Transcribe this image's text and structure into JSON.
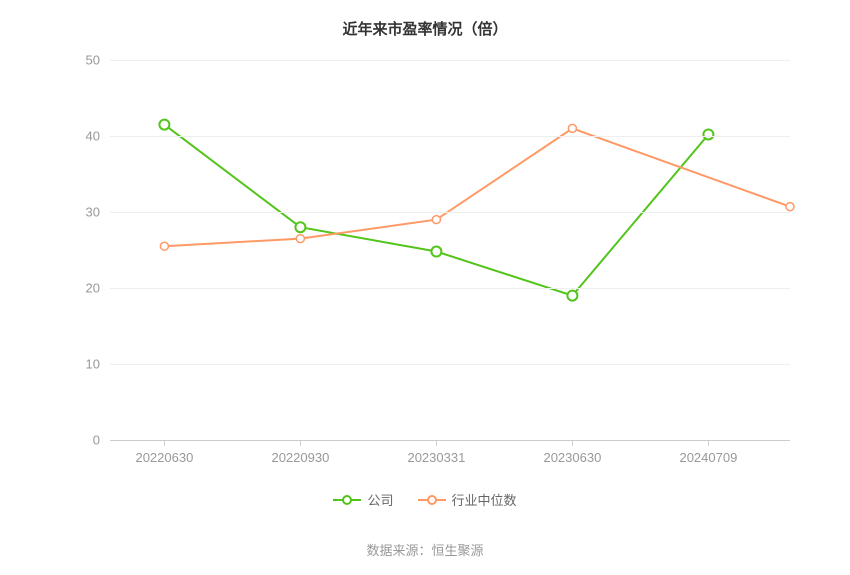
{
  "title": "近年来市盈率情况（倍）",
  "source_label": "数据来源：恒生聚源",
  "chart": {
    "type": "line",
    "background_color": "#ffffff",
    "grid_color": "#eeeeee",
    "axis_color": "#cccccc",
    "label_color": "#999999",
    "label_fontsize": 13,
    "title_fontsize": 15,
    "title_color": "#333333",
    "ylim": [
      0,
      50
    ],
    "ytick_step": 10,
    "yticks": [
      0,
      10,
      20,
      30,
      40,
      50
    ],
    "categories": [
      "20220630",
      "20220930",
      "20230331",
      "20230630",
      "20240709"
    ],
    "x_positions": [
      0.08,
      0.28,
      0.48,
      0.68,
      0.88
    ],
    "extra_x": 1.0,
    "series": [
      {
        "name": "公司",
        "color": "#52c41a",
        "line_width": 2,
        "marker": "circle",
        "marker_size": 5,
        "marker_fill": "#ffffff",
        "marker_stroke_width": 2,
        "values": [
          41.5,
          28.0,
          24.8,
          19.0,
          40.2
        ]
      },
      {
        "name": "行业中位数",
        "color": "#ff9966",
        "line_width": 2,
        "marker": "circle",
        "marker_size": 4,
        "marker_fill": "#ffffff",
        "marker_stroke_width": 1.5,
        "values": [
          25.5,
          26.5,
          29.0,
          41.0,
          null
        ],
        "extra_point": 30.7
      }
    ]
  },
  "legend": {
    "items": [
      {
        "label": "公司",
        "color": "#52c41a"
      },
      {
        "label": "行业中位数",
        "color": "#ff9966"
      }
    ]
  }
}
